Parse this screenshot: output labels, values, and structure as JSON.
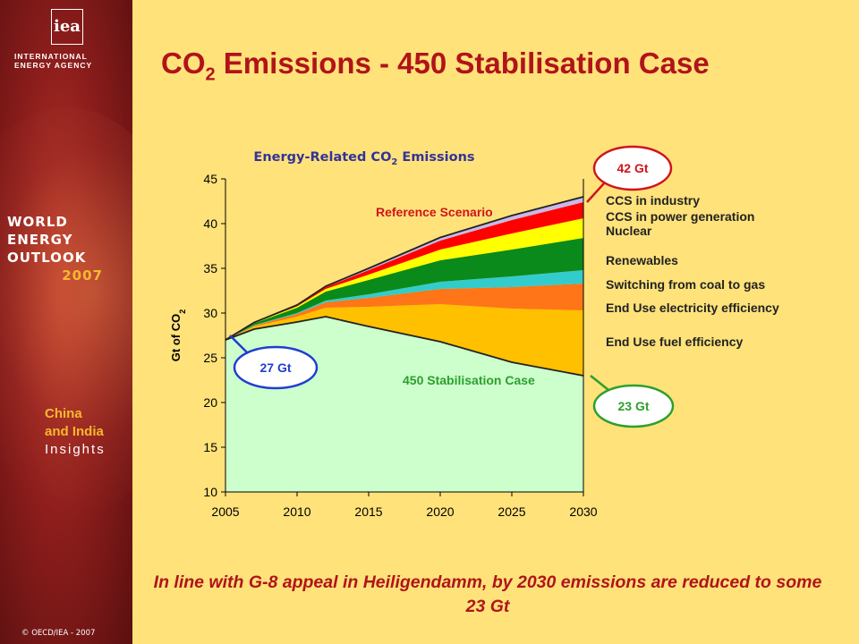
{
  "header": {
    "title_main": "CO",
    "title_sub": "2",
    "title_rest": " Emissions - 450 Stabilisation Case"
  },
  "sidebar": {
    "logo": "iea",
    "agency_lines": [
      "INTERNATIONAL",
      "ENERGY AGENCY"
    ],
    "weo_lines": [
      "WORLD",
      "ENERGY",
      "OUTLOOK"
    ],
    "weo_year": "2007",
    "insight_lines": [
      "China",
      "and India"
    ],
    "insight_word": "Insights",
    "copyright": "© OECD/IEA - 2007"
  },
  "footer": {
    "text": "In line with G-8 appeal in Heiligendamm, by 2030 emissions are reduced to some 23 Gt"
  },
  "chart_data": {
    "type": "area",
    "title": "Energy-Related CO",
    "title_sub": "2",
    "title_rest": " Emissions",
    "ylabel": "Gt of CO",
    "ylabel_sub": "2",
    "ylim": [
      10,
      45
    ],
    "yticks": [
      10,
      15,
      20,
      25,
      30,
      35,
      40,
      45
    ],
    "xlim": [
      2005,
      2030
    ],
    "xticks": [
      2005,
      2010,
      2015,
      2020,
      2025,
      2030
    ],
    "x": [
      2005,
      2007,
      2010,
      2012,
      2015,
      2020,
      2025,
      2030
    ],
    "base_series": {
      "name": "450 Stabilisation Case",
      "values": [
        27.0,
        28.2,
        29.0,
        29.6,
        28.5,
        26.8,
        24.5,
        23.0
      ],
      "color": "#CCFFCC"
    },
    "wedges": [
      {
        "name": "End Use fuel efficiency",
        "values": [
          0,
          0.3,
          0.6,
          1.0,
          2.2,
          4.2,
          6.0,
          7.3
        ],
        "color": "#FFC000"
      },
      {
        "name": "End Use electricity efficiency",
        "values": [
          0,
          0.1,
          0.3,
          0.6,
          1.0,
          1.7,
          2.4,
          3.0
        ],
        "color": "#FF7518"
      },
      {
        "name": "Switching from coal to gas",
        "values": [
          0,
          0.05,
          0.1,
          0.2,
          0.4,
          0.8,
          1.2,
          1.5
        ],
        "color": "#33CCCC"
      },
      {
        "name": "Renewables",
        "values": [
          0,
          0.2,
          0.6,
          1.0,
          1.6,
          2.4,
          3.0,
          3.6
        ],
        "color": "#0A8A1A"
      },
      {
        "name": "Nuclear",
        "values": [
          0,
          0.05,
          0.15,
          0.3,
          0.6,
          1.2,
          1.8,
          2.2
        ],
        "color": "#FFFF00"
      },
      {
        "name": "CCS  in power generation",
        "values": [
          0,
          0.05,
          0.1,
          0.2,
          0.5,
          1.0,
          1.5,
          1.8
        ],
        "color": "#FF0000"
      },
      {
        "name": "CCS  in industry",
        "values": [
          0,
          0.0,
          0.05,
          0.1,
          0.2,
          0.35,
          0.5,
          0.6
        ],
        "color": "#C9B8E8"
      }
    ],
    "annotations": {
      "reference": "Reference Scenario",
      "stabilisation": "450 Stabilisation Case",
      "start_badge": "27 Gt",
      "end_top_badge": "42 Gt",
      "end_bottom_badge": "23 Gt"
    },
    "colors": {
      "annotation_red": "#D0141C",
      "annotation_green": "#2CA02C",
      "badge_blue": "#1F3FD0",
      "chart_title": "#333399"
    }
  }
}
